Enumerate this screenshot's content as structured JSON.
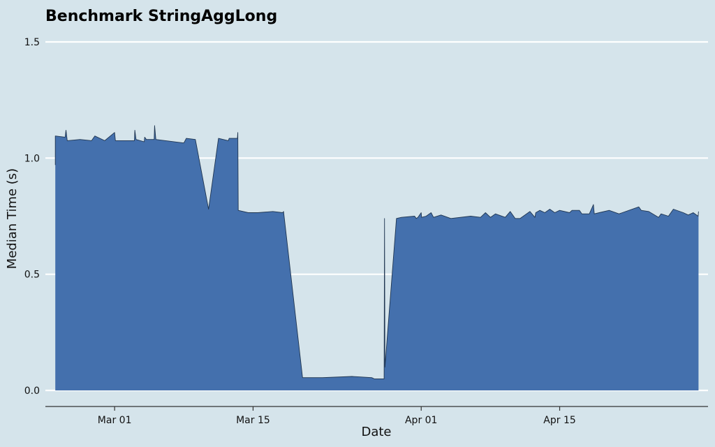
{
  "chart_data": {
    "type": "area",
    "title": "Benchmark StringAggLong",
    "xlabel": "Date",
    "ylabel": "Median Time (s)",
    "ylim": [
      0,
      1.5
    ],
    "xlim": [
      "2023-02-22",
      "2023-04-30"
    ],
    "y_ticks": [
      {
        "value": 0.0,
        "label": "0.0"
      },
      {
        "value": 0.5,
        "label": "0.5"
      },
      {
        "value": 1.0,
        "label": "1.0"
      },
      {
        "value": 1.5,
        "label": "1.5"
      }
    ],
    "x_ticks": [
      {
        "date": "2023-03-01",
        "label": "Mar 01"
      },
      {
        "date": "2023-03-15",
        "label": "Mar 15"
      },
      {
        "date": "2023-04-01",
        "label": "Apr 01"
      },
      {
        "date": "2023-04-15",
        "label": "Apr 15"
      }
    ],
    "grid": "horizontal",
    "colors": {
      "fill": "#4470ad",
      "line": "#1f3550",
      "background": "#d5e4eb",
      "grid": "#ffffff"
    },
    "series": [
      {
        "points": [
          [
            "2023-02-23T00:00",
            0.97
          ],
          [
            "2023-02-23T00:00",
            1.095
          ],
          [
            "2023-02-24T00:00",
            1.09
          ],
          [
            "2023-02-24T02:00",
            1.12
          ],
          [
            "2023-02-24T05:00",
            1.075
          ],
          [
            "2023-02-25T12:00",
            1.08
          ],
          [
            "2023-02-26T16:00",
            1.075
          ],
          [
            "2023-02-27T00:00",
            1.095
          ],
          [
            "2023-02-28T00:00",
            1.075
          ],
          [
            "2023-03-01T00:00",
            1.11
          ],
          [
            "2023-03-01T02:00",
            1.075
          ],
          [
            "2023-03-02T12:00",
            1.075
          ],
          [
            "2023-03-03T00:00",
            1.075
          ],
          [
            "2023-03-03T01:00",
            1.12
          ],
          [
            "2023-03-03T04:00",
            1.08
          ],
          [
            "2023-03-04T00:00",
            1.07
          ],
          [
            "2023-03-04T01:00",
            1.09
          ],
          [
            "2023-03-04T05:00",
            1.08
          ],
          [
            "2023-03-05T00:00",
            1.08
          ],
          [
            "2023-03-05T01:00",
            1.14
          ],
          [
            "2023-03-05T04:00",
            1.08
          ],
          [
            "2023-03-08T00:00",
            1.065
          ],
          [
            "2023-03-08T06:00",
            1.085
          ],
          [
            "2023-03-09T04:00",
            1.08
          ],
          [
            "2023-03-10T12:00",
            0.78
          ],
          [
            "2023-03-11T12:00",
            1.085
          ],
          [
            "2023-03-12T12:00",
            1.075
          ],
          [
            "2023-03-12T14:00",
            1.085
          ],
          [
            "2023-03-13T10:00",
            1.085
          ],
          [
            "2023-03-13T11:00",
            1.11
          ],
          [
            "2023-03-13T12:00",
            0.775
          ],
          [
            "2023-03-14T12:00",
            0.765
          ],
          [
            "2023-03-15T12:00",
            0.765
          ],
          [
            "2023-03-17T00:00",
            0.77
          ],
          [
            "2023-03-18T00:00",
            0.765
          ],
          [
            "2023-03-18T02:00",
            0.77
          ],
          [
            "2023-03-20T00:00",
            0.055
          ],
          [
            "2023-03-22T00:00",
            0.055
          ],
          [
            "2023-03-25T00:00",
            0.06
          ],
          [
            "2023-03-27T00:00",
            0.055
          ],
          [
            "2023-03-27T06:00",
            0.05
          ],
          [
            "2023-03-28T06:00",
            0.05
          ],
          [
            "2023-03-28T07:00",
            0.74
          ],
          [
            "2023-03-28T08:00",
            0.1
          ],
          [
            "2023-03-29T12:00",
            0.74
          ],
          [
            "2023-03-30T00:00",
            0.745
          ],
          [
            "2023-03-31T08:00",
            0.75
          ],
          [
            "2023-03-31T12:00",
            0.74
          ],
          [
            "2023-03-31T16:00",
            0.745
          ],
          [
            "2023-04-01T00:00",
            0.765
          ],
          [
            "2023-04-01T01:00",
            0.745
          ],
          [
            "2023-04-01T12:00",
            0.75
          ],
          [
            "2023-04-02T00:00",
            0.765
          ],
          [
            "2023-04-02T06:00",
            0.745
          ],
          [
            "2023-04-03T00:00",
            0.755
          ],
          [
            "2023-04-04T00:00",
            0.74
          ],
          [
            "2023-04-06T00:00",
            0.75
          ],
          [
            "2023-04-07T00:00",
            0.745
          ],
          [
            "2023-04-07T12:00",
            0.765
          ],
          [
            "2023-04-08T00:00",
            0.745
          ],
          [
            "2023-04-08T12:00",
            0.76
          ],
          [
            "2023-04-09T12:00",
            0.745
          ],
          [
            "2023-04-10T00:00",
            0.77
          ],
          [
            "2023-04-10T12:00",
            0.74
          ],
          [
            "2023-04-11T00:00",
            0.74
          ],
          [
            "2023-04-12T00:00",
            0.77
          ],
          [
            "2023-04-12T12:00",
            0.745
          ],
          [
            "2023-04-12T14:00",
            0.765
          ],
          [
            "2023-04-13T00:00",
            0.775
          ],
          [
            "2023-04-13T12:00",
            0.765
          ],
          [
            "2023-04-14T00:00",
            0.78
          ],
          [
            "2023-04-14T12:00",
            0.765
          ],
          [
            "2023-04-15T00:00",
            0.775
          ],
          [
            "2023-04-16T00:00",
            0.765
          ],
          [
            "2023-04-16T06:00",
            0.775
          ],
          [
            "2023-04-17T00:00",
            0.775
          ],
          [
            "2023-04-17T06:00",
            0.76
          ],
          [
            "2023-04-18T00:00",
            0.76
          ],
          [
            "2023-04-18T10:00",
            0.8
          ],
          [
            "2023-04-18T12:00",
            0.76
          ],
          [
            "2023-04-19T00:00",
            0.765
          ],
          [
            "2023-04-20T00:00",
            0.775
          ],
          [
            "2023-04-21T00:00",
            0.76
          ],
          [
            "2023-04-23T00:00",
            0.79
          ],
          [
            "2023-04-23T06:00",
            0.775
          ],
          [
            "2023-04-24T00:00",
            0.77
          ],
          [
            "2023-04-25T00:00",
            0.745
          ],
          [
            "2023-04-25T06:00",
            0.76
          ],
          [
            "2023-04-26T00:00",
            0.75
          ],
          [
            "2023-04-26T12:00",
            0.78
          ],
          [
            "2023-04-27T12:00",
            0.765
          ],
          [
            "2023-04-28T00:00",
            0.755
          ],
          [
            "2023-04-28T12:00",
            0.765
          ],
          [
            "2023-04-29T00:00",
            0.75
          ],
          [
            "2023-04-29T01:00",
            0.77
          ]
        ]
      }
    ]
  }
}
